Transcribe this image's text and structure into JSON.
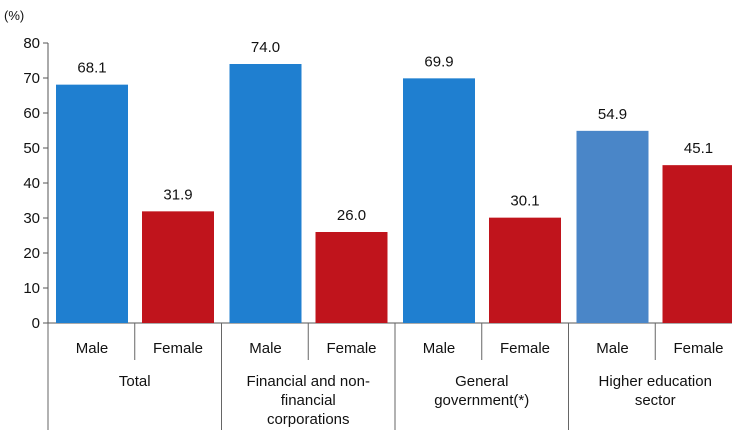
{
  "chart_data": {
    "type": "bar",
    "y_unit": "(%)",
    "ylim": [
      0,
      80
    ],
    "yticks": [
      0,
      10,
      20,
      30,
      40,
      50,
      60,
      70,
      80
    ],
    "grid": false,
    "groups": [
      {
        "label_lines": [
          "Total"
        ],
        "bars": [
          {
            "category": "Male",
            "value": 68.1,
            "label": "68.1",
            "color": "#1f7fd0"
          },
          {
            "category": "Female",
            "value": 31.9,
            "label": "31.9",
            "color": "#c0141c"
          }
        ]
      },
      {
        "label_lines": [
          "Financial and non-",
          "financial",
          "corporations"
        ],
        "bars": [
          {
            "category": "Male",
            "value": 74.0,
            "label": "74.0",
            "color": "#1f7fd0"
          },
          {
            "category": "Female",
            "value": 26.0,
            "label": "26.0",
            "color": "#c0141c"
          }
        ]
      },
      {
        "label_lines": [
          "General",
          "government(*)"
        ],
        "bars": [
          {
            "category": "Male",
            "value": 69.9,
            "label": "69.9",
            "color": "#1f7fd0"
          },
          {
            "category": "Female",
            "value": 30.1,
            "label": "30.1",
            "color": "#c0141c"
          }
        ]
      },
      {
        "label_lines": [
          "Higher education",
          "sector"
        ],
        "bars": [
          {
            "category": "Male",
            "value": 54.9,
            "label": "54.9",
            "color": "#4a86c8"
          },
          {
            "category": "Female",
            "value": 45.1,
            "label": "45.1",
            "color": "#c0141c"
          }
        ]
      }
    ]
  }
}
